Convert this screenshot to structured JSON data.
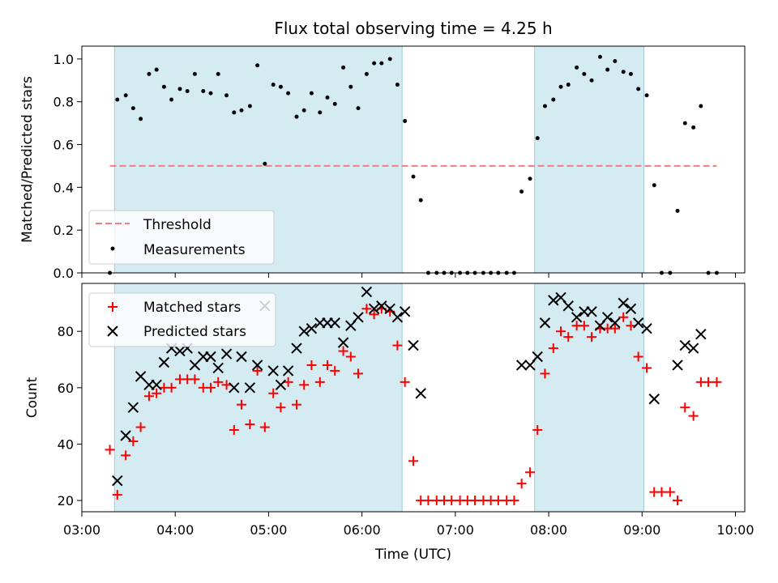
{
  "chart_data": [
    {
      "type": "scatter",
      "title": "Flux total observing time = 4.25 h",
      "xlabel": "",
      "ylabel": "Matched/Predicted stars",
      "xlim": [
        3.0,
        10.1
      ],
      "ylim": [
        0.0,
        1.06
      ],
      "x_ticks": [
        3,
        4,
        5,
        6,
        7,
        8,
        9,
        10
      ],
      "y_ticks": [
        0.0,
        0.2,
        0.4,
        0.6,
        0.8,
        1.0
      ],
      "y_tick_labels": [
        "0.0",
        "0.2",
        "0.4",
        "0.6",
        "0.8",
        "1.0"
      ],
      "observing_windows": [
        [
          3.35,
          6.43
        ],
        [
          7.85,
          9.02
        ]
      ],
      "window_color": "#add8e6",
      "threshold": {
        "name": "Threshold",
        "value": 0.5,
        "x_range": [
          3.3,
          9.8
        ],
        "color": "#f08080"
      },
      "legend": {
        "position": "lower-left",
        "entries": [
          "Threshold",
          "Measurements"
        ]
      },
      "series": [
        {
          "name": "Measurements",
          "color": "#000000",
          "marker": "dot",
          "x": [
            3.3,
            3.38,
            3.47,
            3.55,
            3.63,
            3.72,
            3.8,
            3.88,
            3.96,
            4.05,
            4.13,
            4.21,
            4.3,
            4.38,
            4.46,
            4.55,
            4.63,
            4.71,
            4.8,
            4.88,
            4.96,
            5.05,
            5.13,
            5.21,
            5.3,
            5.38,
            5.46,
            5.55,
            5.63,
            5.71,
            5.8,
            5.88,
            5.96,
            6.05,
            6.13,
            6.21,
            6.3,
            6.38,
            6.46,
            6.55,
            6.63,
            6.71,
            6.8,
            6.88,
            6.96,
            7.05,
            7.13,
            7.21,
            7.3,
            7.38,
            7.46,
            7.55,
            7.63,
            7.71,
            7.8,
            7.88,
            7.96,
            8.05,
            8.13,
            8.21,
            8.3,
            8.38,
            8.46,
            8.55,
            8.63,
            8.71,
            8.8,
            8.88,
            8.96,
            9.05,
            9.13,
            9.21,
            9.3,
            9.38,
            9.46,
            9.55,
            9.63,
            9.71,
            9.8
          ],
          "y": [
            0.0,
            0.81,
            0.83,
            0.77,
            0.72,
            0.93,
            0.95,
            0.87,
            0.81,
            0.86,
            0.85,
            0.93,
            0.85,
            0.84,
            0.93,
            0.83,
            0.75,
            0.76,
            0.78,
            0.97,
            0.51,
            0.88,
            0.87,
            0.84,
            0.73,
            0.76,
            0.84,
            0.75,
            0.82,
            0.79,
            0.96,
            0.87,
            0.77,
            0.93,
            0.98,
            0.98,
            1.0,
            0.88,
            0.71,
            0.45,
            0.34,
            0.0,
            0.0,
            0.0,
            0.0,
            0.0,
            0.0,
            0.0,
            0.0,
            0.0,
            0.0,
            0.0,
            0.0,
            0.38,
            0.44,
            0.63,
            0.78,
            0.81,
            0.87,
            0.88,
            0.96,
            0.93,
            0.9,
            1.01,
            0.95,
            0.99,
            0.94,
            0.93,
            0.86,
            0.83,
            0.41,
            0.0,
            0.0,
            0.29,
            0.7,
            0.68,
            0.78,
            0.0,
            0.0
          ]
        }
      ]
    },
    {
      "type": "scatter",
      "title": "",
      "xlabel": "Time (UTC)",
      "ylabel": "Count",
      "xlim": [
        3.0,
        10.1
      ],
      "ylim": [
        16,
        97
      ],
      "x_ticks": [
        3,
        4,
        5,
        6,
        7,
        8,
        9,
        10
      ],
      "x_tick_labels": [
        "03:00",
        "04:00",
        "05:00",
        "06:00",
        "07:00",
        "08:00",
        "09:00",
        "10:00"
      ],
      "y_ticks": [
        20,
        40,
        60,
        80
      ],
      "y_tick_labels": [
        "20",
        "40",
        "60",
        "80"
      ],
      "observing_windows": [
        [
          3.35,
          6.43
        ],
        [
          7.85,
          9.02
        ]
      ],
      "window_color": "#add8e6",
      "legend": {
        "position": "upper-left",
        "entries": [
          "Matched stars",
          "Predicted stars"
        ]
      },
      "series": [
        {
          "name": "Matched stars",
          "color": "#ff0000",
          "marker": "plus",
          "x": [
            3.3,
            3.38,
            3.47,
            3.55,
            3.63,
            3.72,
            3.8,
            3.88,
            3.96,
            4.05,
            4.13,
            4.21,
            4.3,
            4.38,
            4.46,
            4.55,
            4.63,
            4.71,
            4.8,
            4.88,
            4.96,
            5.05,
            5.13,
            5.21,
            5.3,
            5.38,
            5.46,
            5.55,
            5.63,
            5.71,
            5.8,
            5.88,
            5.96,
            6.05,
            6.13,
            6.21,
            6.3,
            6.38,
            6.46,
            6.55,
            6.63,
            6.71,
            6.8,
            6.88,
            6.96,
            7.05,
            7.13,
            7.21,
            7.3,
            7.38,
            7.46,
            7.55,
            7.63,
            7.71,
            7.8,
            7.88,
            7.96,
            8.05,
            8.13,
            8.21,
            8.3,
            8.38,
            8.46,
            8.55,
            8.63,
            8.71,
            8.8,
            8.88,
            8.96,
            9.05,
            9.13,
            9.21,
            9.3,
            9.38,
            9.46,
            9.55,
            9.63,
            9.71,
            9.8
          ],
          "y": [
            38,
            22,
            36,
            41,
            46,
            57,
            58,
            60,
            60,
            63,
            63,
            63,
            60,
            60,
            62,
            61,
            45,
            54,
            47,
            66,
            46,
            58,
            53,
            62,
            54,
            61,
            68,
            62,
            68,
            66,
            73,
            71,
            65,
            88,
            86,
            88,
            87,
            75,
            62,
            34,
            20,
            20,
            20,
            20,
            20,
            20,
            20,
            20,
            20,
            20,
            20,
            20,
            20,
            26,
            30,
            45,
            65,
            74,
            80,
            78,
            82,
            82,
            78,
            81,
            81,
            81,
            85,
            82,
            71,
            67,
            23,
            23,
            23,
            20,
            53,
            50,
            62,
            62,
            62
          ]
        },
        {
          "name": "Predicted stars",
          "color": "#000000",
          "marker": "x",
          "x": [
            3.38,
            3.47,
            3.55,
            3.63,
            3.72,
            3.8,
            3.88,
            3.96,
            4.05,
            4.13,
            4.21,
            4.3,
            4.38,
            4.46,
            4.55,
            4.63,
            4.71,
            4.8,
            4.88,
            4.96,
            5.05,
            5.13,
            5.21,
            5.3,
            5.38,
            5.46,
            5.55,
            5.63,
            5.71,
            5.8,
            5.88,
            5.96,
            6.05,
            6.13,
            6.21,
            6.3,
            6.38,
            6.46,
            6.55,
            6.63,
            7.71,
            7.8,
            7.88,
            7.96,
            8.05,
            8.13,
            8.21,
            8.3,
            8.38,
            8.46,
            8.55,
            8.63,
            8.71,
            8.8,
            8.88,
            8.96,
            9.05,
            9.13,
            9.38,
            9.46,
            9.55,
            9.63
          ],
          "y": [
            27,
            43,
            53,
            64,
            61,
            61,
            69,
            74,
            73,
            74,
            68,
            71,
            71,
            67,
            72,
            60,
            71,
            60,
            68,
            89,
            66,
            61,
            66,
            74,
            80,
            81,
            83,
            83,
            83,
            76,
            82,
            85,
            94,
            88,
            89,
            88,
            85,
            87,
            75,
            58,
            68,
            68,
            71,
            83,
            91,
            92,
            89,
            85,
            87,
            87,
            82,
            85,
            83,
            90,
            88,
            83,
            81,
            56,
            68,
            75,
            74,
            79
          ]
        }
      ]
    }
  ]
}
